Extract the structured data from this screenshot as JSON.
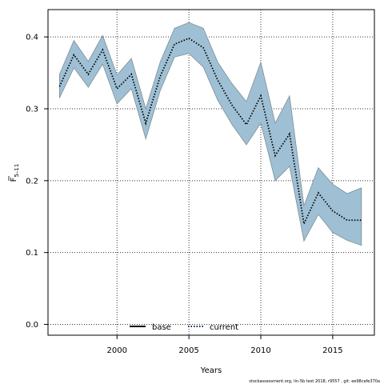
{
  "chart_data": {
    "type": "line",
    "xlabel": "Years",
    "ylabel": "F",
    "ylabel_sub": "5–11",
    "xlim": [
      1995.2,
      2017.9
    ],
    "ylim": [
      -0.015,
      0.438
    ],
    "x_ticks": [
      2000,
      2005,
      2010,
      2015
    ],
    "y_ticks": [
      0.0,
      0.1,
      0.2,
      0.3,
      0.4
    ],
    "x_tick_labels": [
      "2000",
      "2005",
      "2010",
      "2015"
    ],
    "y_tick_labels": [
      "0.0",
      "0.1",
      "0.2",
      "0.3",
      "0.4"
    ],
    "grid": true,
    "legend_position": "bottom-center",
    "x": [
      1996,
      1997,
      1998,
      1999,
      2000,
      2001,
      2002,
      2003,
      2004,
      2005,
      2006,
      2007,
      2008,
      2009,
      2010,
      2011,
      2012,
      2013,
      2014,
      2015,
      2016,
      2017
    ],
    "series": [
      {
        "name": "current",
        "style": "dotted",
        "color": "#000000",
        "values": [
          0.331,
          0.375,
          0.348,
          0.382,
          0.328,
          0.348,
          0.28,
          0.345,
          0.39,
          0.398,
          0.385,
          0.34,
          0.305,
          0.278,
          0.318,
          0.235,
          0.265,
          0.14,
          0.183,
          0.158,
          0.145,
          0.145
        ],
        "band_upper": [
          0.348,
          0.395,
          0.366,
          0.402,
          0.347,
          0.37,
          0.3,
          0.365,
          0.412,
          0.42,
          0.412,
          0.365,
          0.335,
          0.31,
          0.365,
          0.28,
          0.318,
          0.165,
          0.218,
          0.195,
          0.182,
          0.19
        ],
        "band_lower": [
          0.315,
          0.357,
          0.33,
          0.362,
          0.307,
          0.328,
          0.258,
          0.325,
          0.372,
          0.377,
          0.358,
          0.312,
          0.278,
          0.25,
          0.28,
          0.2,
          0.22,
          0.116,
          0.153,
          0.128,
          0.117,
          0.11
        ]
      }
    ],
    "band_color": "#9fc0d4",
    "band_stroke": "#7f8e96"
  },
  "legend": [
    {
      "label": "base",
      "style": "solid",
      "color": "#000000"
    },
    {
      "label": "current",
      "style": "dotted",
      "color": "#00205c"
    }
  ],
  "footer": "stockassessment.org, lin-5b test 2018, r9557 , git: ee98cafe370a"
}
